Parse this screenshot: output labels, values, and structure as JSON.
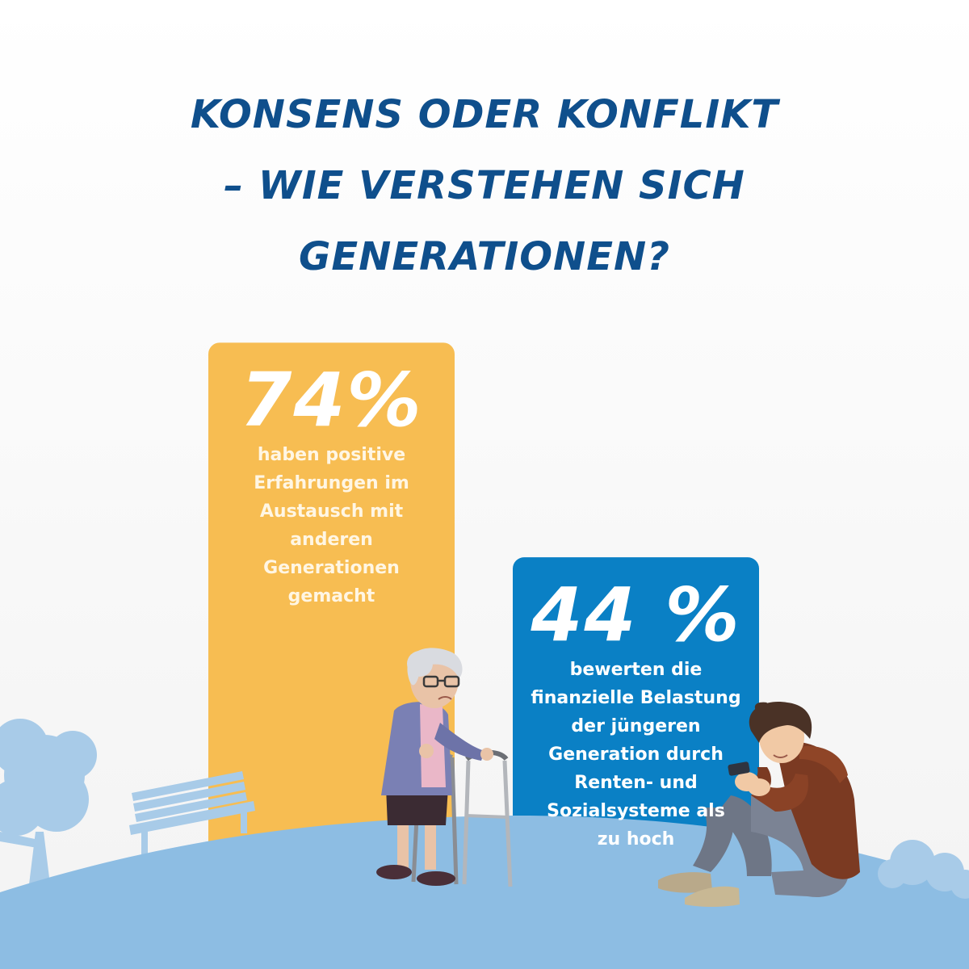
{
  "title": {
    "lines": [
      "KONSENS ODER KONFLIKT",
      "– WIE VERSTEHEN SICH",
      "GENERATIONEN?"
    ]
  },
  "colors": {
    "title": "#0f4f8c",
    "bar_yellow": "#f7bd52",
    "bar_blue": "#0a80c5",
    "ground": "#8dbde3",
    "silhouette": "#a8cbe8"
  },
  "chart_data": {
    "type": "bar",
    "values": [
      74,
      44
    ],
    "value_labels": [
      "74%",
      "44 %"
    ],
    "descriptions": [
      [
        "haben positive",
        "Erfahrungen im",
        "Austausch mit",
        "anderen",
        "Generationen",
        "gemacht"
      ],
      [
        "bewerten die",
        "finanzielle Belastung",
        "der jüngeren",
        "Generation durch",
        "Renten- und",
        "Sozialsysteme als",
        "zu hoch"
      ]
    ],
    "colors": [
      "#f7bd52",
      "#0a80c5"
    ],
    "ylim": [
      0,
      100
    ]
  }
}
